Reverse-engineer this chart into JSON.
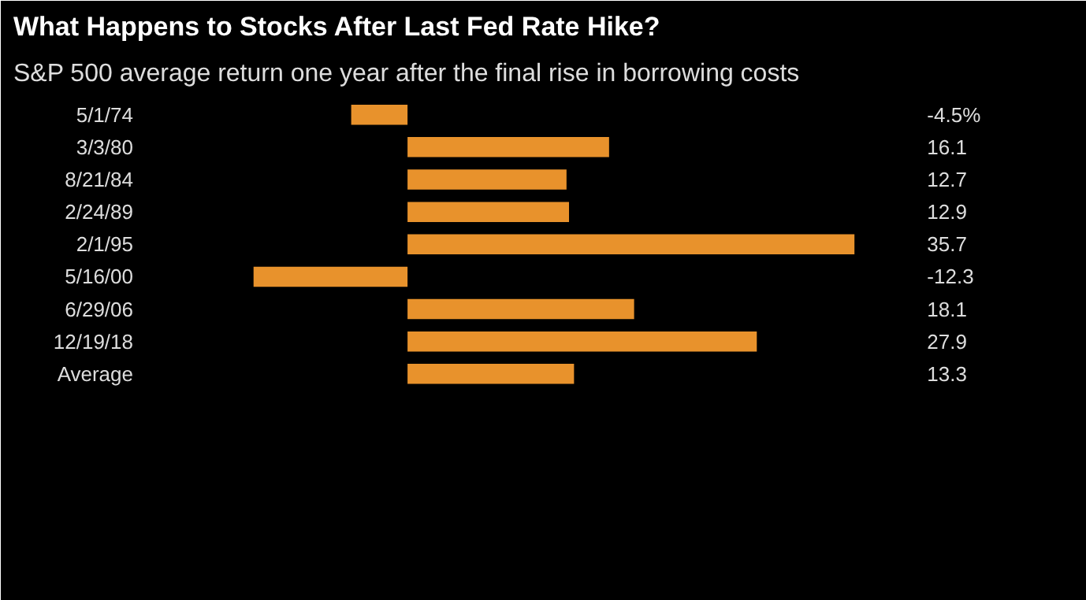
{
  "chart_data": {
    "type": "bar",
    "orientation": "horizontal",
    "title": "What Happens to Stocks After Last Fed Rate Hike?",
    "subtitle": "S&P 500 average return one year after the final rise in borrowing costs",
    "categories": [
      "5/1/74",
      "3/3/80",
      "8/21/84",
      "2/24/89",
      "2/1/95",
      "5/16/00",
      "6/29/06",
      "12/19/18",
      "Average"
    ],
    "values": [
      -4.5,
      16.1,
      12.7,
      12.9,
      35.7,
      -12.3,
      18.1,
      27.9,
      13.3
    ],
    "value_labels": [
      "-4.5%",
      "16.1",
      "12.7",
      "12.9",
      "35.7",
      "-12.3",
      "18.1",
      "27.9",
      "13.3"
    ],
    "color": "#e8922c",
    "grid": false
  }
}
